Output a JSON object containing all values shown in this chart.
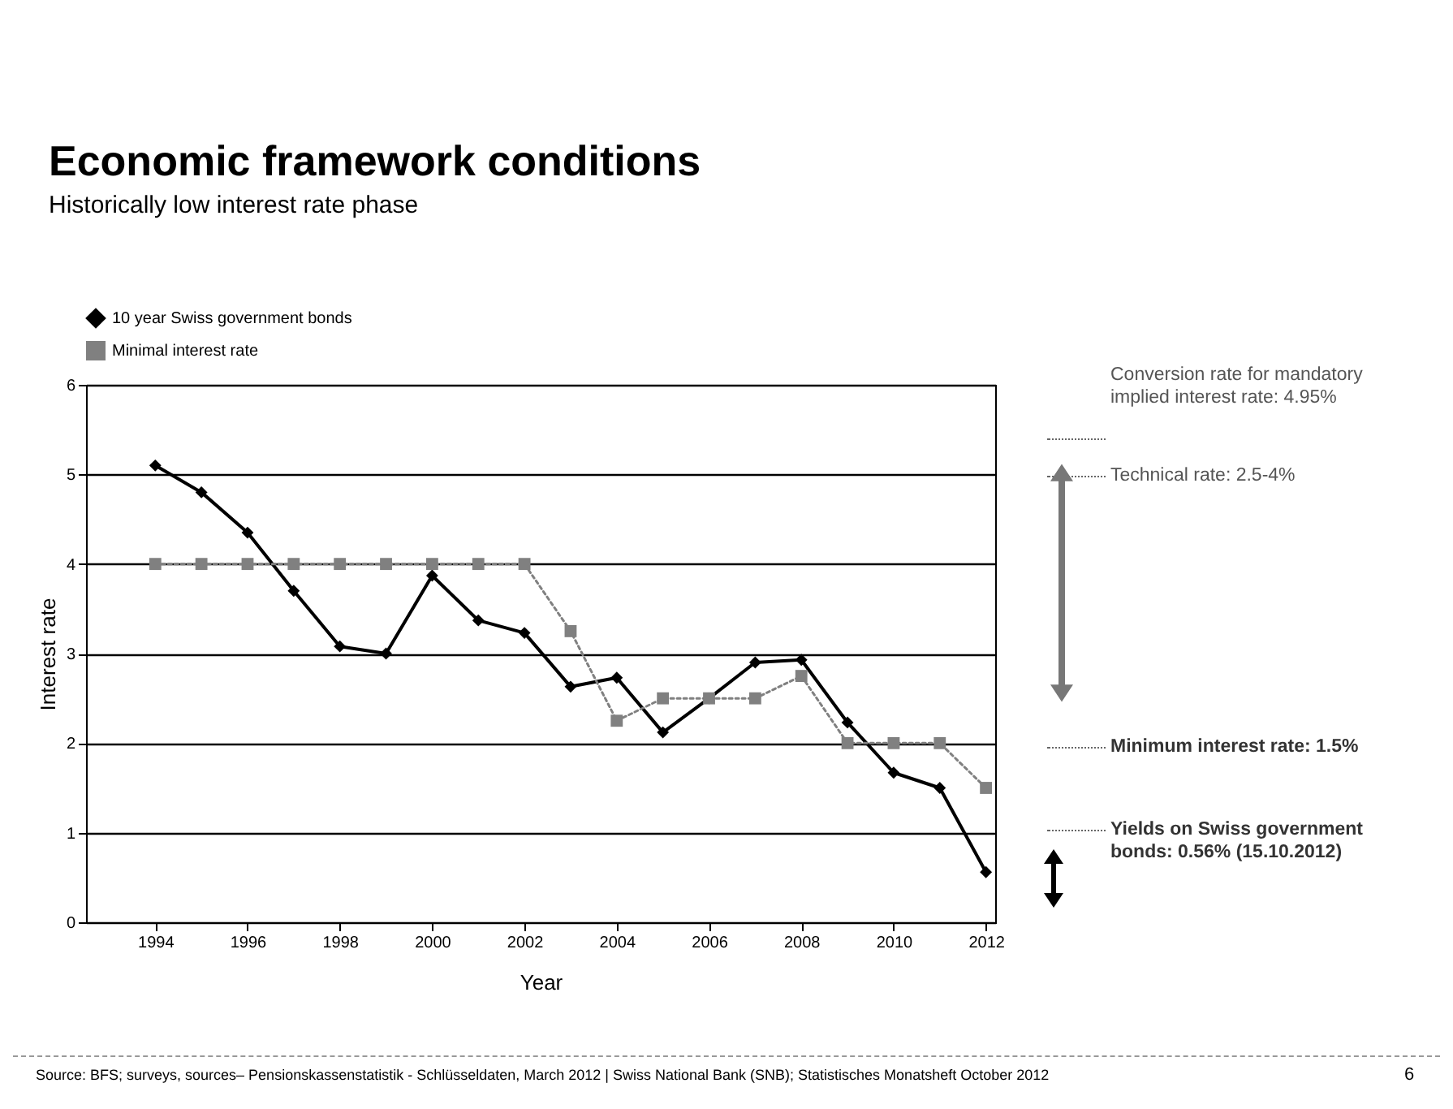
{
  "chart_data": {
    "type": "line",
    "title": "Economic framework conditions",
    "subtitle": "Historically low interest rate phase",
    "xlabel": "Year",
    "ylabel": "Interest rate",
    "x": [
      1994,
      1995,
      1996,
      1997,
      1998,
      1999,
      2000,
      2001,
      2002,
      2003,
      2004,
      2005,
      2006,
      2007,
      2008,
      2009,
      2010,
      2011,
      2012
    ],
    "series": [
      {
        "name": "10 year Swiss government bonds",
        "color": "#000000",
        "marker": "diamond",
        "line_style": "solid",
        "values": [
          5.1,
          4.8,
          4.35,
          3.7,
          3.08,
          3.0,
          3.87,
          3.37,
          3.23,
          2.63,
          2.73,
          2.12,
          2.5,
          2.9,
          2.93,
          2.23,
          1.67,
          1.5,
          0.56
        ]
      },
      {
        "name": "Minimal interest rate",
        "color": "#808080",
        "marker": "square",
        "line_style": "dotted",
        "values": [
          4,
          4,
          4,
          4,
          4,
          4,
          4,
          4,
          4,
          3.25,
          2.25,
          2.5,
          2.5,
          2.5,
          2.75,
          2,
          2,
          2,
          1.5
        ]
      }
    ],
    "xlim": [
      1992.5,
      2012.2
    ],
    "xticks": [
      1994,
      1996,
      1998,
      2000,
      2002,
      2004,
      2006,
      2008,
      2010,
      2012
    ],
    "ylim": [
      0,
      6
    ],
    "yticks": [
      0,
      1,
      2,
      3,
      4,
      5,
      6
    ],
    "grid": "y",
    "legend": "top",
    "annotations": [
      "Conversion rate for mandatory implied interest rate: 4.95%",
      "Technical rate: 2.5-4%",
      "Minimum interest rate: 1.5%",
      "Yields on Swiss government bonds: 0.56% (15.10.2012)",
      "Source: BFS; surveys, sources– Pensionskassenstatistik - Schlüsseldaten, March 2012 | Swiss National Bank (SNB); Statistisches Monatsheft October 2012",
      "6"
    ]
  }
}
